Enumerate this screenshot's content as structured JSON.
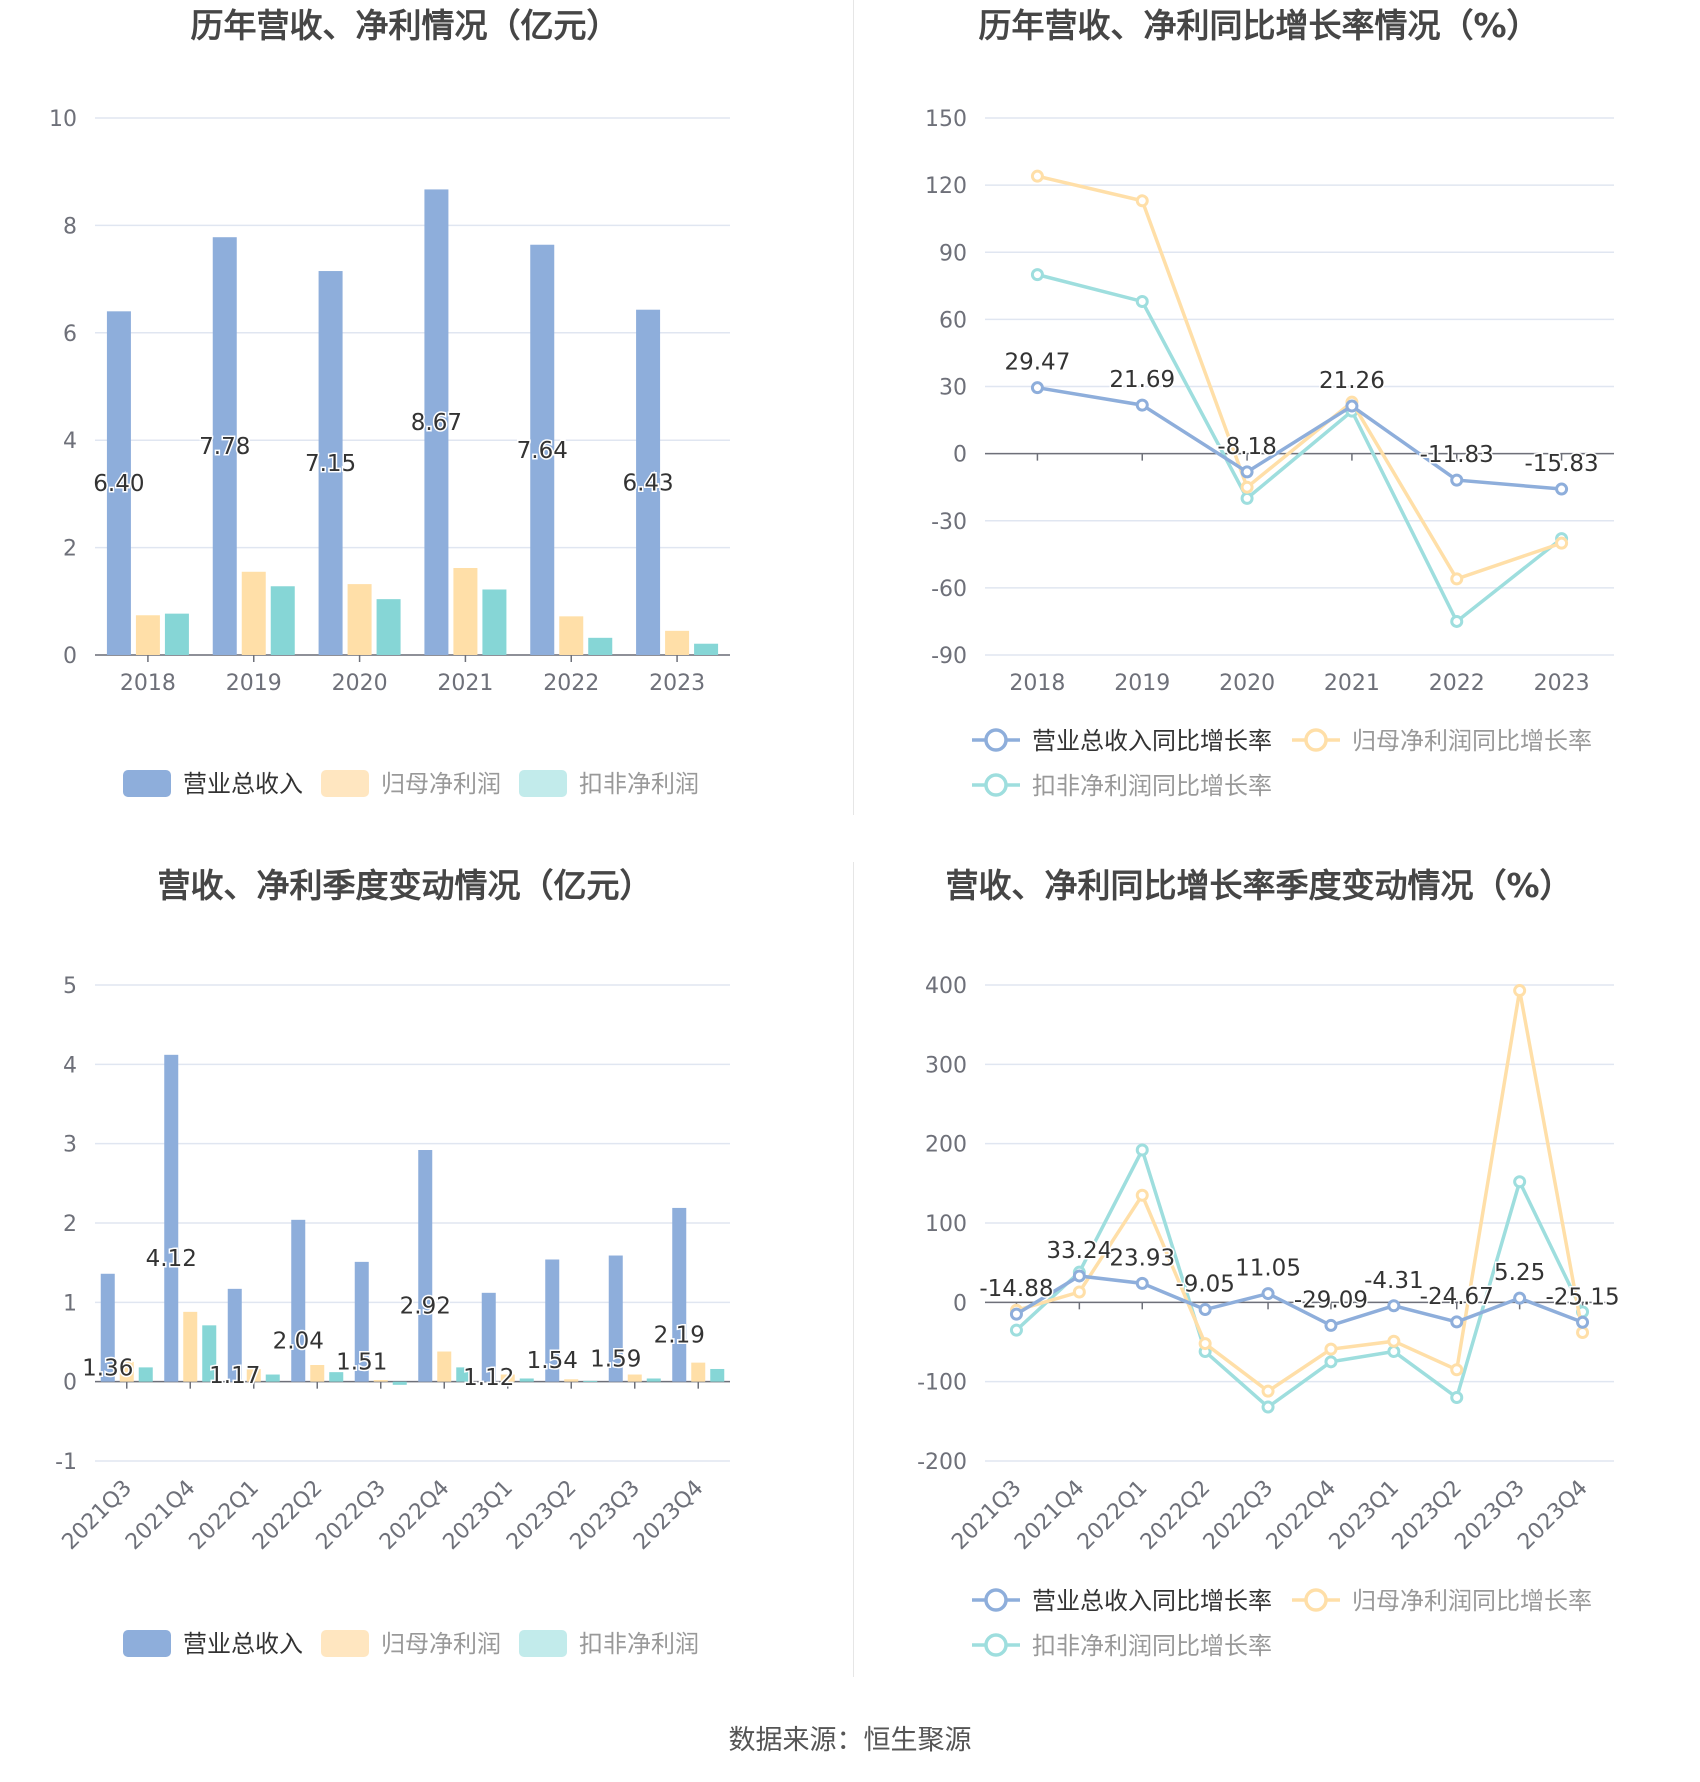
{
  "source": "数据来源：恒生聚源",
  "colors": {
    "revenue": "#8EAEDB",
    "netprofit": "#FFDFA8",
    "deducted": "#86D6D6",
    "grid": "#E0E6F1",
    "axis": "#6E7079",
    "label": "#333333"
  },
  "chart_data": [
    {
      "type": "bar",
      "title": "历年营收、净利情况（亿元）",
      "categories": [
        "2018",
        "2019",
        "2020",
        "2021",
        "2022",
        "2023"
      ],
      "ylim": [
        0,
        10
      ],
      "yticks": [
        0,
        2,
        4,
        6,
        8,
        10
      ],
      "series": [
        {
          "name": "营业总收入",
          "values": [
            6.4,
            7.78,
            7.15,
            8.67,
            7.64,
            6.43
          ],
          "labels": [
            "6.40",
            "7.78",
            "7.15",
            "8.67",
            "7.64",
            "6.43"
          ]
        },
        {
          "name": "归母净利润",
          "values": [
            0.74,
            1.55,
            1.32,
            1.62,
            0.72,
            0.45
          ]
        },
        {
          "name": "扣非净利润",
          "values": [
            0.77,
            1.28,
            1.04,
            1.22,
            0.32,
            0.21
          ]
        }
      ],
      "legend": "bottom"
    },
    {
      "type": "line",
      "title": "历年营收、净利同比增长率情况（%）",
      "categories": [
        "2018",
        "2019",
        "2020",
        "2021",
        "2022",
        "2023"
      ],
      "ylim": [
        -90,
        150
      ],
      "yticks": [
        -90,
        -60,
        -30,
        0,
        30,
        60,
        90,
        120,
        150
      ],
      "series": [
        {
          "name": "营业总收入同比增长率",
          "values": [
            29.47,
            21.69,
            -8.18,
            21.26,
            -11.83,
            -15.83
          ],
          "labels": [
            "29.47",
            "21.69",
            "-8.18",
            "21.26",
            "-11.83",
            "-15.83"
          ]
        },
        {
          "name": "归母净利润同比增长率",
          "values": [
            124,
            113,
            -15,
            23,
            -56,
            -40
          ]
        },
        {
          "name": "扣非净利润同比增长率",
          "values": [
            80,
            68,
            -20,
            19,
            -75,
            -38
          ]
        }
      ],
      "legend": "bottom"
    },
    {
      "type": "bar",
      "title": "营收、净利季度变动情况（亿元）",
      "categories": [
        "2021Q3",
        "2021Q4",
        "2022Q1",
        "2022Q2",
        "2022Q3",
        "2022Q4",
        "2023Q1",
        "2023Q2",
        "2023Q3",
        "2023Q4"
      ],
      "ylim": [
        -1,
        5
      ],
      "yticks": [
        -1,
        0,
        1,
        2,
        3,
        4,
        5
      ],
      "series": [
        {
          "name": "营业总收入",
          "values": [
            1.36,
            4.12,
            1.17,
            2.04,
            1.51,
            2.92,
            1.12,
            1.54,
            1.59,
            2.19
          ],
          "labels": [
            "1.36",
            "4.12",
            "1.17",
            "2.04",
            "1.51",
            "2.92",
            "1.12",
            "1.54",
            "1.59",
            "2.19"
          ]
        },
        {
          "name": "归母净利润",
          "values": [
            0.25,
            0.88,
            0.16,
            0.21,
            0.02,
            0.38,
            0.09,
            0.03,
            0.09,
            0.24
          ]
        },
        {
          "name": "扣非净利润",
          "values": [
            0.18,
            0.71,
            0.09,
            0.12,
            -0.04,
            0.18,
            0.04,
            0.01,
            0.04,
            0.16
          ]
        }
      ],
      "legend": "bottom"
    },
    {
      "type": "line",
      "title": "营收、净利同比增长率季度变动情况（%）",
      "categories": [
        "2021Q3",
        "2021Q4",
        "2022Q1",
        "2022Q2",
        "2022Q3",
        "2022Q4",
        "2023Q1",
        "2023Q2",
        "2023Q3",
        "2023Q4"
      ],
      "ylim": [
        -200,
        400
      ],
      "yticks": [
        -200,
        -100,
        0,
        100,
        200,
        300,
        400
      ],
      "series": [
        {
          "name": "营业总收入同比增长率",
          "values": [
            -14.88,
            33.24,
            23.93,
            -9.05,
            11.05,
            -29.09,
            -4.31,
            -24.67,
            5.25,
            -25.15
          ],
          "labels": [
            "-14.88",
            "33.24",
            "23.93",
            "-9.05",
            "11.05",
            "-29.09",
            "-4.31",
            "-24.67",
            "5.25",
            "-25.15"
          ]
        },
        {
          "name": "归母净利润同比增长率",
          "values": [
            -10,
            13,
            135,
            -52,
            -112,
            -59,
            -49,
            -85,
            393,
            -38
          ]
        },
        {
          "name": "扣非净利润同比增长率",
          "values": [
            -35,
            38,
            192,
            -62,
            -132,
            -75,
            -62,
            -120,
            152,
            -12
          ]
        }
      ],
      "legend": "bottom"
    }
  ]
}
